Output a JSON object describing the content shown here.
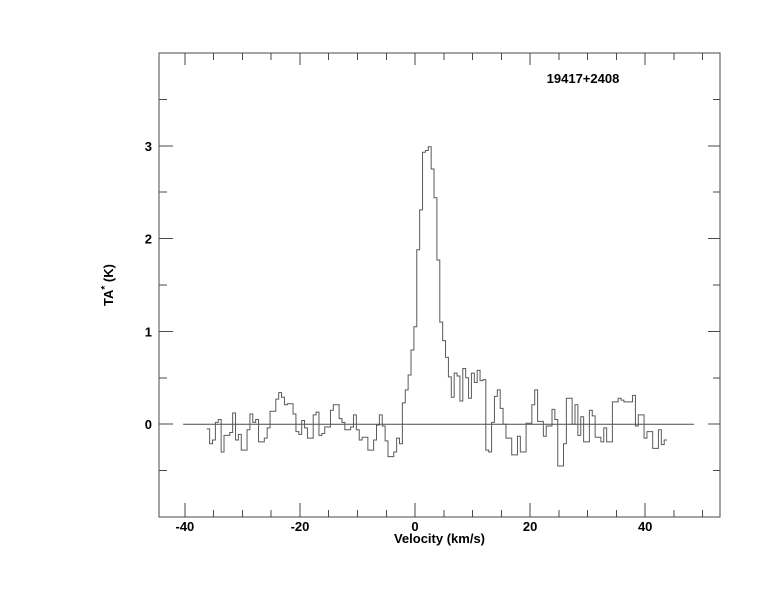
{
  "page": {
    "background": "#ffffff"
  },
  "chart_data": {
    "type": "line",
    "subtype": "histogram-step-spectrum",
    "title": "19417+2408",
    "xlabel": "Velocity (km/s)",
    "ylabel": "TA* (K)",
    "ylabel_parts": {
      "base": "TA",
      "sup": "*",
      "rest": " (K)"
    },
    "xlim": [
      -44.5,
      53
    ],
    "ylim": [
      -1,
      4
    ],
    "x_major_ticks": [
      -40,
      -20,
      0,
      20,
      40
    ],
    "x_tick_labels": [
      "-40",
      "-20",
      "0",
      "20",
      "40"
    ],
    "x_minor_step": 5,
    "x_minor_range": [
      -40,
      50
    ],
    "y_major_ticks": [
      0,
      1,
      2,
      3
    ],
    "y_tick_labels": [
      "0",
      "1",
      "2",
      "3"
    ],
    "y_minor_ticks": [
      -0.5,
      0.5,
      1.5,
      2.5,
      3.5
    ],
    "grid": false,
    "legend": null,
    "axis_color": "#4a4a4a",
    "line_color": "#5a5a5a",
    "text_color": "#000000",
    "baseline": {
      "y": 0,
      "x_from": -40.3,
      "x_to": 48.5
    },
    "channels": {
      "unit": "km/s",
      "v_start": -36.2,
      "dv": 0.5,
      "values": [
        -0.05,
        -0.21,
        -0.17,
        0.02,
        0.05,
        -0.3,
        -0.12,
        -0.12,
        -0.09,
        0.12,
        -0.17,
        -0.11,
        -0.28,
        -0.28,
        -0.06,
        0.11,
        0.02,
        0.05,
        -0.19,
        -0.19,
        -0.15,
        -0.04,
        0.14,
        0.14,
        0.27,
        0.34,
        0.29,
        0.21,
        0.22,
        0.22,
        0.11,
        -0.08,
        -0.11,
        0.04,
        -0.04,
        -0.15,
        -0.15,
        0.1,
        0.13,
        -0.12,
        -0.1,
        -0.03,
        -0.03,
        0.15,
        0.21,
        0.21,
        0.06,
        0.02,
        -0.06,
        -0.06,
        -0.03,
        0.1,
        -0.06,
        -0.17,
        -0.14,
        -0.14,
        -0.28,
        -0.28,
        -0.17,
        -0.01,
        0.1,
        -0.02,
        -0.18,
        -0.35,
        -0.35,
        -0.3,
        -0.15,
        -0.21,
        0.23,
        0.37,
        0.53,
        0.8,
        1.05,
        1.88,
        2.31,
        2.93,
        2.95,
        2.99,
        2.75,
        2.44,
        1.77,
        1.1,
        0.9,
        0.72,
        0.51,
        0.29,
        0.55,
        0.52,
        0.25,
        0.6,
        0.5,
        0.28,
        0.55,
        0.45,
        0.58,
        0.47,
        0.48,
        -0.28,
        -0.3,
        0.02,
        0.3,
        0.37,
        0.17,
        0.0,
        -0.15,
        -0.15,
        -0.33,
        -0.33,
        -0.13,
        -0.3,
        -0.3,
        0.01,
        0.01,
        0.21,
        0.37,
        0.03,
        0.03,
        -0.13,
        -0.02,
        -0.02,
        0.16,
        0.05,
        -0.45,
        -0.45,
        -0.21,
        0.28,
        0.28,
        0.0,
        0.21,
        -0.12,
        0.08,
        -0.19,
        -0.19,
        0.15,
        0.09,
        -0.14,
        -0.14,
        -0.19,
        -0.04,
        -0.19,
        -0.19,
        0.24,
        0.24,
        0.28,
        0.26,
        0.24,
        0.24,
        0.24,
        0.31,
        -0.02,
        0.1,
        0.1,
        -0.15,
        -0.08,
        -0.08,
        -0.26,
        -0.26,
        -0.06,
        -0.22,
        -0.17
      ]
    }
  }
}
